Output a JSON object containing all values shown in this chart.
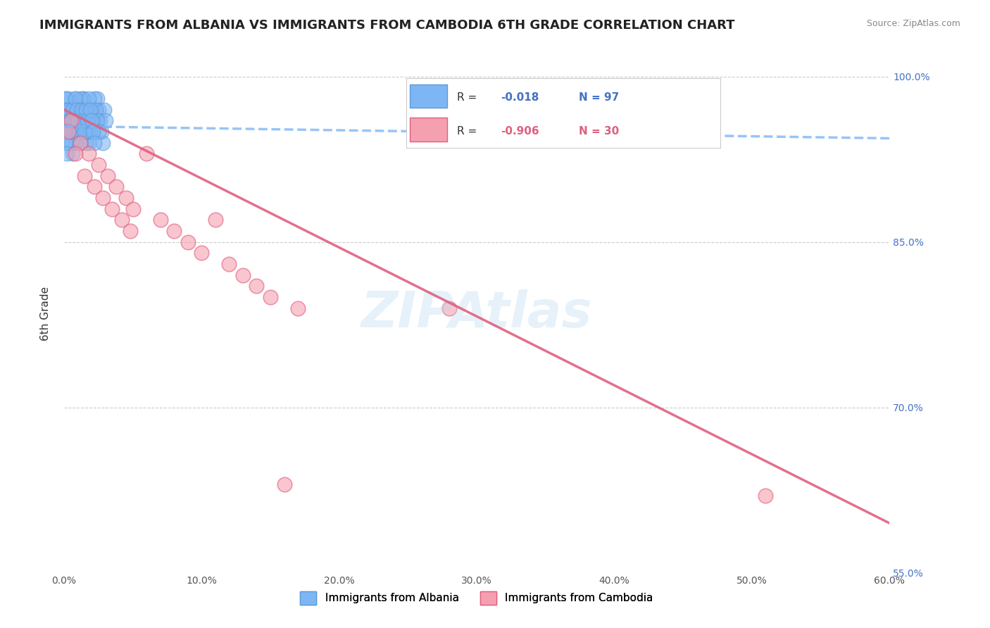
{
  "title": "IMMIGRANTS FROM ALBANIA VS IMMIGRANTS FROM CAMBODIA 6TH GRADE CORRELATION CHART",
  "source_text": "Source: ZipAtlas.com",
  "ylabel": "6th Grade",
  "xlabel": "",
  "watermark": "ZIPAtlas",
  "xlim": [
    0.0,
    0.6
  ],
  "ylim": [
    0.58,
    1.02
  ],
  "xticks": [
    0.0,
    0.1,
    0.2,
    0.3,
    0.4,
    0.5,
    0.6
  ],
  "xticklabels": [
    "0.0%",
    "10.0%",
    "20.0%",
    "30.0%",
    "40.0%",
    "50.0%",
    "60.0%"
  ],
  "ytick_positions": [
    1.0,
    0.85,
    0.7,
    0.55
  ],
  "ytick_labels": [
    "100.0%",
    "85.0%",
    "70.0%",
    "55.0%"
  ],
  "right_ytick_positions": [
    1.0,
    0.85,
    0.7,
    0.55
  ],
  "right_ytick_labels": [
    "100.0%",
    "85.0%",
    "70.0%",
    "55.0%"
  ],
  "grid_color": "#cccccc",
  "background_color": "#ffffff",
  "albania_color": "#7EB6F5",
  "albania_edge_color": "#5B9BD5",
  "cambodia_color": "#F5A0B0",
  "cambodia_edge_color": "#E06080",
  "albania_R": -0.018,
  "albania_N": 97,
  "cambodia_R": -0.906,
  "cambodia_N": 30,
  "legend_R_color": "#4472C4",
  "legend_R2_color": "#E06080",
  "albania_trend_color": "#7EB6F5",
  "cambodia_trend_color": "#E06080",
  "title_fontsize": 13,
  "axis_label_fontsize": 11,
  "tick_fontsize": 10,
  "legend_fontsize": 11,
  "right_tick_color": "#4472C4",
  "bottom_tick_color": "#333333",
  "albania_scatter_x": [
    0.001,
    0.002,
    0.003,
    0.004,
    0.005,
    0.006,
    0.007,
    0.008,
    0.009,
    0.01,
    0.011,
    0.012,
    0.013,
    0.014,
    0.015,
    0.016,
    0.017,
    0.018,
    0.019,
    0.02,
    0.021,
    0.022,
    0.023,
    0.024,
    0.025,
    0.026,
    0.027,
    0.028,
    0.029,
    0.03,
    0.001,
    0.002,
    0.003,
    0.004,
    0.005,
    0.006,
    0.007,
    0.008,
    0.009,
    0.01,
    0.011,
    0.012,
    0.013,
    0.014,
    0.015,
    0.016,
    0.017,
    0.003,
    0.004,
    0.005,
    0.001,
    0.002,
    0.003,
    0.004,
    0.005,
    0.006,
    0.007,
    0.008,
    0.009,
    0.01,
    0.011,
    0.012,
    0.013,
    0.014,
    0.015,
    0.016,
    0.017,
    0.018,
    0.019,
    0.02,
    0.021,
    0.022,
    0.023,
    0.024,
    0.025,
    0.001,
    0.002,
    0.003,
    0.004,
    0.005,
    0.006,
    0.007,
    0.008,
    0.009,
    0.01,
    0.011,
    0.012,
    0.013,
    0.014,
    0.015,
    0.016,
    0.017,
    0.018,
    0.019,
    0.02,
    0.021,
    0.022
  ],
  "albania_scatter_y": [
    0.97,
    0.96,
    0.98,
    0.95,
    0.97,
    0.96,
    0.95,
    0.98,
    0.97,
    0.96,
    0.95,
    0.97,
    0.96,
    0.98,
    0.97,
    0.96,
    0.95,
    0.94,
    0.97,
    0.96,
    0.95,
    0.97,
    0.96,
    0.98,
    0.97,
    0.96,
    0.95,
    0.94,
    0.97,
    0.96,
    0.98,
    0.97,
    0.96,
    0.95,
    0.97,
    0.96,
    0.95,
    0.94,
    0.97,
    0.96,
    0.95,
    0.97,
    0.96,
    0.98,
    0.97,
    0.96,
    0.95,
    0.94,
    0.97,
    0.96,
    0.98,
    0.97,
    0.96,
    0.95,
    0.94,
    0.93,
    0.97,
    0.96,
    0.95,
    0.97,
    0.96,
    0.98,
    0.97,
    0.96,
    0.95,
    0.94,
    0.97,
    0.96,
    0.95,
    0.97,
    0.96,
    0.98,
    0.97,
    0.96,
    0.95,
    0.94,
    0.93,
    0.97,
    0.96,
    0.95,
    0.97,
    0.96,
    0.98,
    0.97,
    0.96,
    0.95,
    0.94,
    0.97,
    0.96,
    0.95,
    0.97,
    0.96,
    0.98,
    0.97,
    0.96,
    0.95,
    0.94
  ],
  "cambodia_scatter_x": [
    0.005,
    0.012,
    0.018,
    0.025,
    0.032,
    0.038,
    0.045,
    0.05,
    0.06,
    0.07,
    0.08,
    0.09,
    0.1,
    0.11,
    0.12,
    0.13,
    0.14,
    0.15,
    0.16,
    0.17,
    0.003,
    0.008,
    0.015,
    0.022,
    0.028,
    0.035,
    0.042,
    0.048,
    0.51,
    0.28
  ],
  "cambodia_scatter_y": [
    0.96,
    0.94,
    0.93,
    0.92,
    0.91,
    0.9,
    0.89,
    0.88,
    0.93,
    0.87,
    0.86,
    0.85,
    0.84,
    0.87,
    0.83,
    0.82,
    0.81,
    0.8,
    0.63,
    0.79,
    0.95,
    0.93,
    0.91,
    0.9,
    0.89,
    0.88,
    0.87,
    0.86,
    0.62,
    0.79
  ],
  "albania_trend_x": [
    0.0,
    0.6
  ],
  "albania_trend_y": [
    0.955,
    0.944
  ],
  "cambodia_trend_x": [
    0.0,
    0.6
  ],
  "cambodia_trend_y": [
    0.97,
    0.595
  ]
}
